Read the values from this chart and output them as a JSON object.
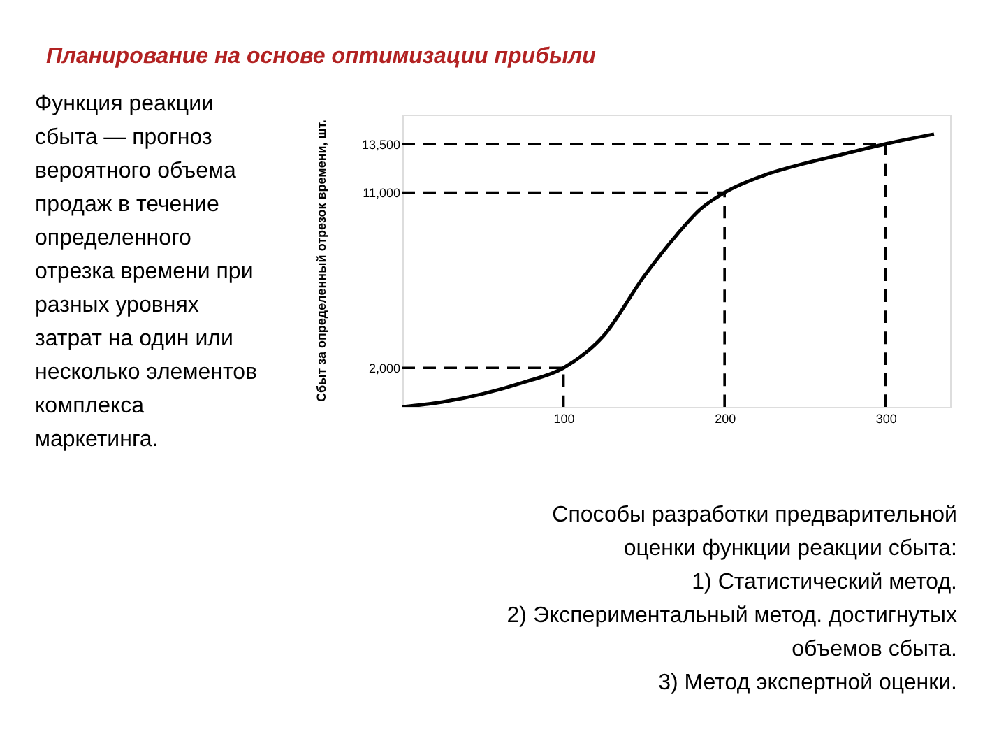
{
  "chart_data": {
    "type": "line",
    "title": "Планирование на основе оптимизации прибыли",
    "ylabel": "Сбыт за определенный отрезок времени, шт.",
    "series": [
      {
        "color": "#000000",
        "x": [
          0,
          25,
          50,
          75,
          100,
          125,
          150,
          170,
          185,
          200,
          225,
          250,
          275,
          300,
          330
        ],
        "values": [
          0,
          250,
          670,
          1250,
          2000,
          3660,
          6700,
          8800,
          10150,
          11000,
          11900,
          12500,
          13000,
          13500,
          14000
        ]
      },
      {
        "line_style": "dashed",
        "color": "#000000",
        "x": [
          0,
          100,
          100
        ],
        "values": [
          2000,
          2000,
          0
        ]
      },
      {
        "line_style": "dashed",
        "color": "#000000",
        "x": [
          0,
          200,
          200
        ],
        "values": [
          11000,
          11000,
          0
        ]
      },
      {
        "line_style": "dashed",
        "color": "#000000",
        "x": [
          0,
          300,
          300
        ],
        "values": [
          13500,
          13500,
          0
        ]
      }
    ],
    "xlim": [
      0,
      340
    ],
    "xticks": [
      100,
      200,
      300
    ],
    "ylim": [
      0,
      15000
    ],
    "yticks": [
      {
        "value": 2000,
        "label": "2,000"
      },
      {
        "value": 11000,
        "label": "11,000"
      },
      {
        "value": 13500,
        "label": "13,500"
      }
    ],
    "grid": false,
    "marker": "none",
    "line_style": "solid",
    "annotations": [
      "Функция реакции сбыта — прогноз вероятного объема продаж в течение определенного отрезка времени при разных уровнях затрат на один или несколько элементов комплекса маркетинга.",
      "Способы разработки предварительной оценки функции реакции сбыта:",
      "1) Статистический метод.",
      "2) Экспериментальный метод. достигнутых объемов сбыта.",
      "3) Метод экспертной оценки."
    ]
  }
}
